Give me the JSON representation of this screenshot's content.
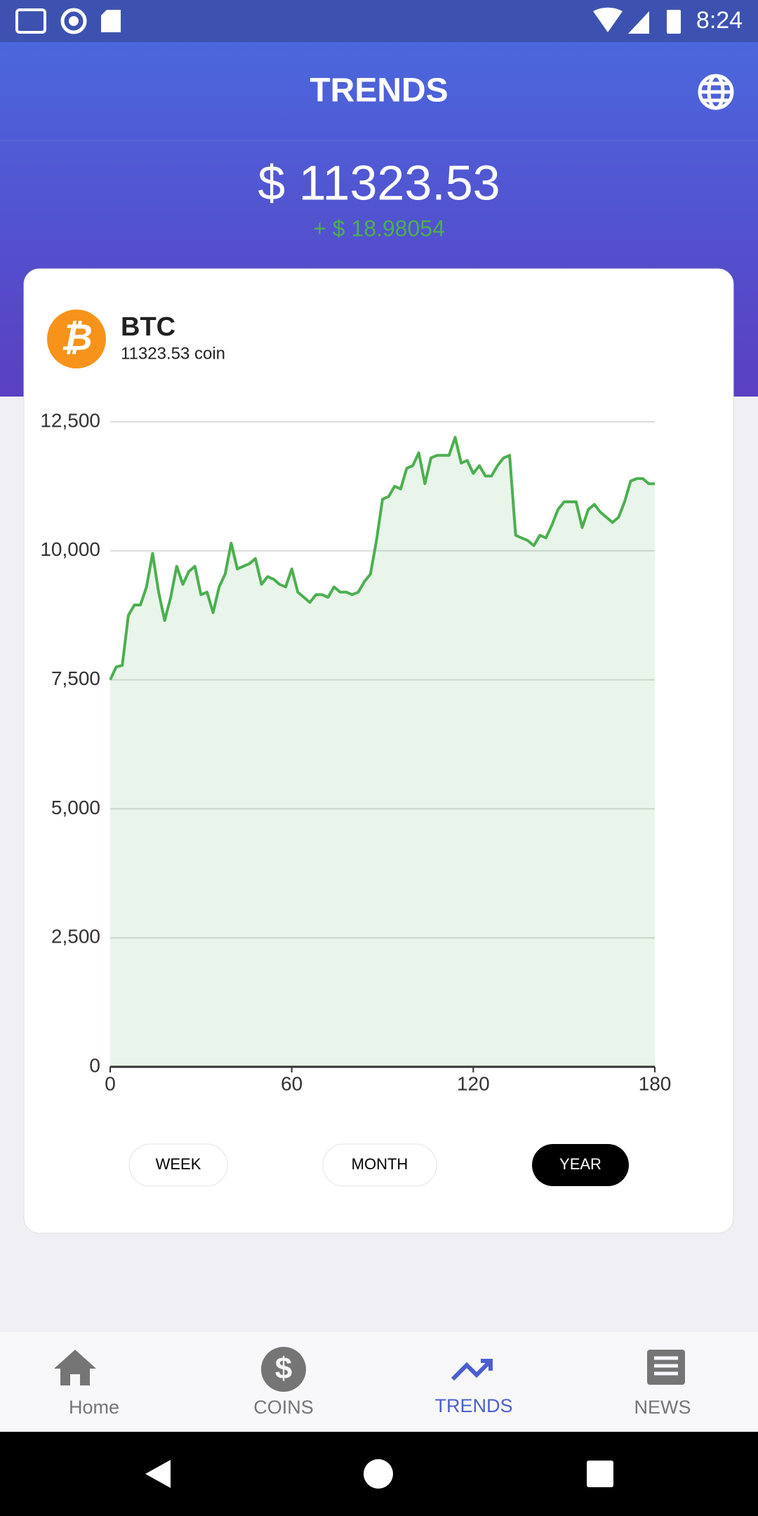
{
  "status_bar": {
    "time": "8:24"
  },
  "header": {
    "title": "TRENDS"
  },
  "price": {
    "value": "$ 11323.53",
    "change": "+ $ 18.98054"
  },
  "coin": {
    "symbol": "BTC",
    "amount": "11323.53 coin"
  },
  "chart_data": {
    "type": "line",
    "color": "#4caf50",
    "area": true,
    "grid": true,
    "x": [
      0,
      2,
      4,
      6,
      8,
      10,
      12,
      14,
      16,
      18,
      20,
      22,
      24,
      26,
      28,
      30,
      32,
      34,
      36,
      38,
      40,
      42,
      44,
      46,
      48,
      50,
      52,
      54,
      56,
      58,
      60,
      62,
      64,
      66,
      68,
      70,
      72,
      74,
      76,
      78,
      80,
      82,
      84,
      86,
      88,
      90,
      92,
      94,
      96,
      98,
      100,
      102,
      104,
      106,
      108,
      110,
      112,
      114,
      116,
      118,
      120,
      122,
      124,
      126,
      128,
      130,
      132,
      134,
      136,
      138,
      140,
      142,
      144,
      146,
      148,
      150,
      152,
      154,
      156,
      158,
      160,
      162,
      164,
      166,
      168,
      170,
      172,
      174,
      176,
      178,
      180
    ],
    "values": [
      7500,
      7750,
      7780,
      8750,
      8950,
      8950,
      9300,
      9950,
      9200,
      8650,
      9100,
      9700,
      9350,
      9600,
      9700,
      9150,
      9200,
      8800,
      9300,
      9550,
      10150,
      9650,
      9700,
      9750,
      9850,
      9350,
      9500,
      9450,
      9350,
      9300,
      9650,
      9200,
      9100,
      9000,
      9150,
      9150,
      9100,
      9300,
      9200,
      9200,
      9150,
      9200,
      9400,
      9550,
      10200,
      11000,
      11050,
      11250,
      11200,
      11600,
      11650,
      11900,
      11300,
      11800,
      11850,
      11850,
      11850,
      12200,
      11700,
      11750,
      11500,
      11650,
      11450,
      11450,
      11650,
      11800,
      11850,
      10300,
      10250,
      10200,
      10100,
      10300,
      10250,
      10500,
      10800,
      10950,
      10950,
      10950,
      10450,
      10800,
      10900,
      10750,
      10650,
      10550,
      10650,
      10950,
      11350,
      11400,
      11400,
      11300,
      11300
    ],
    "xlim": [
      0,
      180
    ],
    "xticks": [
      0,
      60,
      120,
      180
    ],
    "ylim": [
      0,
      12500
    ],
    "yticks": [
      0,
      {
        "value": 2500,
        "label": "2,500"
      },
      {
        "value": 5000,
        "label": "5,000"
      },
      {
        "value": 7500,
        "label": "7,500"
      },
      {
        "value": 10000,
        "label": "10,000"
      },
      {
        "value": 12500,
        "label": "12,500"
      }
    ]
  },
  "range_buttons": [
    "WEEK",
    "MONTH",
    "YEAR"
  ],
  "nav": [
    "Home",
    "COINS",
    "TRENDS",
    "NEWS"
  ]
}
